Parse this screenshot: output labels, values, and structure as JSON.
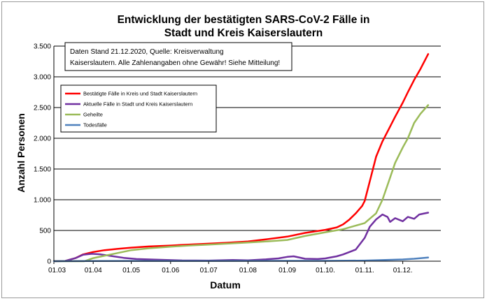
{
  "chart_data": {
    "type": "line",
    "title_line1": "Entwicklung der bestätigten SARS-CoV-2 Fälle in",
    "title_line2": "Stadt und Kreis Kaiserslautern",
    "xlabel": "Datum",
    "ylabel": "Anzahl Personen",
    "note_line1": "Daten Stand 21.12.2020, Quelle: Kreisverwaltung",
    "note_line2": "Kaiserslautern. Alle Zahlenangaben ohne Gewähr! Siehe Mitteilung!",
    "x_range": [
      "2020-03-01",
      "2020-12-31"
    ],
    "ylim": [
      0,
      3500
    ],
    "grid": "horizontal",
    "legend_position": "upper-left",
    "y_ticks": [
      {
        "value": 0,
        "label": "0"
      },
      {
        "value": 500,
        "label": "500"
      },
      {
        "value": 1000,
        "label": "1.000"
      },
      {
        "value": 1500,
        "label": "1.500"
      },
      {
        "value": 2000,
        "label": "2.000"
      },
      {
        "value": 2500,
        "label": "2.500"
      },
      {
        "value": 3000,
        "label": "3.000"
      },
      {
        "value": 3500,
        "label": "3.500"
      }
    ],
    "x_ticks": [
      {
        "date": "2020-03-01",
        "label": "01.03"
      },
      {
        "date": "2020-04-01",
        "label": "01.04"
      },
      {
        "date": "2020-05-01",
        "label": "01.05"
      },
      {
        "date": "2020-06-01",
        "label": "01.06"
      },
      {
        "date": "2020-07-01",
        "label": "01.07"
      },
      {
        "date": "2020-08-01",
        "label": "01.08"
      },
      {
        "date": "2020-09-01",
        "label": "01.09"
      },
      {
        "date": "2020-10-01",
        "label": "01.10."
      },
      {
        "date": "2020-11-01",
        "label": "01.11."
      },
      {
        "date": "2020-12-01",
        "label": "01.12."
      }
    ],
    "series": [
      {
        "name": "Bestätigte Fälle in Kreis und Stadt Kaiserslautern",
        "color": "#ff0000",
        "points": [
          [
            "2020-03-01",
            0
          ],
          [
            "2020-03-10",
            5
          ],
          [
            "2020-03-18",
            50
          ],
          [
            "2020-03-24",
            110
          ],
          [
            "2020-04-01",
            150
          ],
          [
            "2020-04-10",
            180
          ],
          [
            "2020-04-20",
            200
          ],
          [
            "2020-05-01",
            220
          ],
          [
            "2020-05-15",
            240
          ],
          [
            "2020-06-01",
            255
          ],
          [
            "2020-06-15",
            270
          ],
          [
            "2020-07-01",
            285
          ],
          [
            "2020-07-15",
            300
          ],
          [
            "2020-08-01",
            320
          ],
          [
            "2020-08-15",
            355
          ],
          [
            "2020-09-01",
            400
          ],
          [
            "2020-09-15",
            460
          ],
          [
            "2020-10-01",
            510
          ],
          [
            "2020-10-10",
            550
          ],
          [
            "2020-10-15",
            600
          ],
          [
            "2020-10-20",
            680
          ],
          [
            "2020-10-25",
            780
          ],
          [
            "2020-10-30",
            900
          ],
          [
            "2020-11-01",
            980
          ],
          [
            "2020-11-05",
            1300
          ],
          [
            "2020-11-10",
            1700
          ],
          [
            "2020-11-15",
            1950
          ],
          [
            "2020-11-20",
            2150
          ],
          [
            "2020-11-25",
            2350
          ],
          [
            "2020-12-01",
            2580
          ],
          [
            "2020-12-05",
            2750
          ],
          [
            "2020-12-10",
            2950
          ],
          [
            "2020-12-15",
            3130
          ],
          [
            "2020-12-21",
            3370
          ]
        ]
      },
      {
        "name": "Aktuelle Fälle in Stadt und Kreis Kaiserslautern",
        "color": "#7030a0",
        "points": [
          [
            "2020-03-01",
            0
          ],
          [
            "2020-03-10",
            5
          ],
          [
            "2020-03-18",
            50
          ],
          [
            "2020-03-24",
            105
          ],
          [
            "2020-03-31",
            120
          ],
          [
            "2020-04-07",
            110
          ],
          [
            "2020-04-15",
            85
          ],
          [
            "2020-04-25",
            55
          ],
          [
            "2020-05-05",
            35
          ],
          [
            "2020-05-20",
            25
          ],
          [
            "2020-06-10",
            12
          ],
          [
            "2020-07-01",
            10
          ],
          [
            "2020-07-20",
            20
          ],
          [
            "2020-08-01",
            15
          ],
          [
            "2020-08-15",
            30
          ],
          [
            "2020-08-25",
            45
          ],
          [
            "2020-09-01",
            70
          ],
          [
            "2020-09-06",
            80
          ],
          [
            "2020-09-15",
            40
          ],
          [
            "2020-09-25",
            35
          ],
          [
            "2020-10-01",
            45
          ],
          [
            "2020-10-10",
            80
          ],
          [
            "2020-10-15",
            110
          ],
          [
            "2020-10-20",
            150
          ],
          [
            "2020-10-25",
            190
          ],
          [
            "2020-11-01",
            380
          ],
          [
            "2020-11-05",
            560
          ],
          [
            "2020-11-10",
            680
          ],
          [
            "2020-11-15",
            760
          ],
          [
            "2020-11-19",
            720
          ],
          [
            "2020-11-21",
            640
          ],
          [
            "2020-11-25",
            700
          ],
          [
            "2020-12-01",
            650
          ],
          [
            "2020-12-05",
            720
          ],
          [
            "2020-12-10",
            690
          ],
          [
            "2020-12-14",
            760
          ],
          [
            "2020-12-21",
            790
          ]
        ]
      },
      {
        "name": "Geheilte",
        "color": "#9bbb59",
        "points": [
          [
            "2020-03-01",
            0
          ],
          [
            "2020-03-25",
            0
          ],
          [
            "2020-04-01",
            50
          ],
          [
            "2020-04-15",
            110
          ],
          [
            "2020-05-01",
            180
          ],
          [
            "2020-05-15",
            210
          ],
          [
            "2020-06-01",
            235
          ],
          [
            "2020-06-15",
            255
          ],
          [
            "2020-07-01",
            270
          ],
          [
            "2020-07-15",
            285
          ],
          [
            "2020-08-01",
            305
          ],
          [
            "2020-08-15",
            320
          ],
          [
            "2020-09-01",
            345
          ],
          [
            "2020-09-15",
            410
          ],
          [
            "2020-10-01",
            470
          ],
          [
            "2020-10-15",
            520
          ],
          [
            "2020-11-01",
            620
          ],
          [
            "2020-11-10",
            780
          ],
          [
            "2020-11-15",
            1000
          ],
          [
            "2020-11-20",
            1300
          ],
          [
            "2020-11-25",
            1600
          ],
          [
            "2020-12-01",
            1850
          ],
          [
            "2020-12-05",
            2000
          ],
          [
            "2020-12-10",
            2250
          ],
          [
            "2020-12-15",
            2400
          ],
          [
            "2020-12-21",
            2540
          ]
        ]
      },
      {
        "name": "Todesfälle",
        "color": "#4f81bd",
        "points": [
          [
            "2020-03-01",
            0
          ],
          [
            "2020-03-30",
            2
          ],
          [
            "2020-05-01",
            5
          ],
          [
            "2020-07-01",
            5
          ],
          [
            "2020-09-01",
            6
          ],
          [
            "2020-10-01",
            6
          ],
          [
            "2020-11-01",
            10
          ],
          [
            "2020-11-15",
            18
          ],
          [
            "2020-12-01",
            28
          ],
          [
            "2020-12-10",
            40
          ],
          [
            "2020-12-21",
            60
          ]
        ]
      }
    ]
  }
}
